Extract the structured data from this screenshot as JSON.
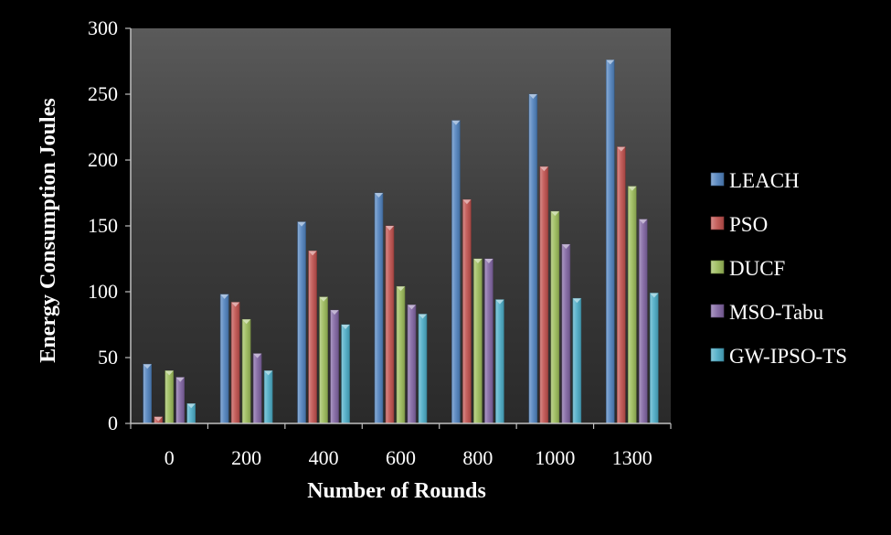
{
  "chart_data": {
    "type": "bar",
    "title": "",
    "xlabel": "Number of Rounds",
    "ylabel": "Energy Consumption Joules",
    "categories": [
      "0",
      "200",
      "400",
      "600",
      "800",
      "1000",
      "1300"
    ],
    "ylim": [
      0,
      300
    ],
    "yticks": [
      0,
      50,
      100,
      150,
      200,
      250,
      300
    ],
    "grid": false,
    "legend_position": "right",
    "series": [
      {
        "name": "LEACH",
        "color": "#4f81bd",
        "values": [
          45,
          98,
          153,
          175,
          230,
          250,
          276
        ]
      },
      {
        "name": "PSO",
        "color": "#c0504d",
        "values": [
          5,
          92,
          131,
          150,
          170,
          195,
          210
        ]
      },
      {
        "name": "DUCF",
        "color": "#9bbb59",
        "values": [
          40,
          79,
          96,
          104,
          125,
          161,
          180
        ]
      },
      {
        "name": "MSO-Tabu",
        "color": "#8064a2",
        "values": [
          35,
          53,
          86,
          90,
          125,
          136,
          155
        ]
      },
      {
        "name": "GW-IPSO-TS",
        "color": "#4bacc6",
        "values": [
          15,
          40,
          75,
          83,
          94,
          95,
          99
        ]
      }
    ]
  }
}
